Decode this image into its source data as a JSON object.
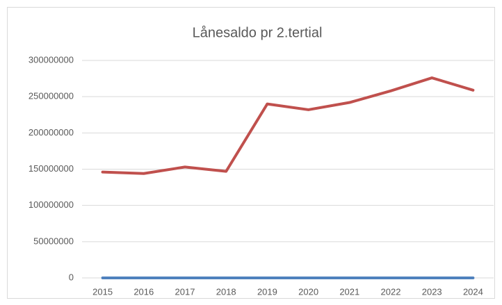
{
  "chart_data": {
    "type": "line",
    "title": "Lånesaldo pr 2.tertial",
    "categories": [
      "2015",
      "2016",
      "2017",
      "2018",
      "2019",
      "2020",
      "2021",
      "2022",
      "2023",
      "2024"
    ],
    "series": [
      {
        "color": "#c0504d",
        "values": [
          146000000,
          144000000,
          153000000,
          147000000,
          240000000,
          232000000,
          242000000,
          258000000,
          276000000,
          259000000
        ]
      },
      {
        "color": "#4f81bd",
        "values": [
          0,
          0,
          0,
          0,
          0,
          0,
          0,
          0,
          0,
          0
        ]
      }
    ],
    "ylim": [
      0,
      300000000
    ],
    "yticks": [
      0,
      50000000,
      100000000,
      150000000,
      200000000,
      250000000,
      300000000
    ],
    "grid": true
  }
}
